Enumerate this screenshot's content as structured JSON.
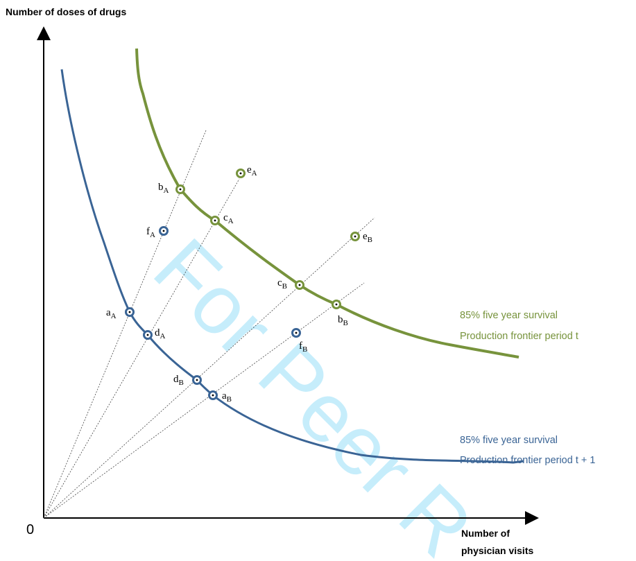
{
  "axes": {
    "y_title": "Number of doses of drugs",
    "x_title_line1": "Number of",
    "x_title_line2": "physician visits",
    "origin": "0"
  },
  "watermark": "For Peer R",
  "curves": {
    "period_t": {
      "caption_line1": "85% five year survival",
      "caption_line2": "Production frontier  period t",
      "color": "#77933c"
    },
    "period_t1": {
      "caption_line1": "85% five year survival",
      "caption_line2": "Production frontier period t + 1",
      "color": "#3a6495"
    }
  },
  "points": {
    "bA": {
      "main": "b",
      "sub": "A",
      "color": "#77933c"
    },
    "cA": {
      "main": "c",
      "sub": "A",
      "color": "#77933c"
    },
    "eA": {
      "main": "e",
      "sub": "A",
      "color": "#77933c"
    },
    "cB": {
      "main": "c",
      "sub": "B",
      "color": "#77933c"
    },
    "bB": {
      "main": "b",
      "sub": "B",
      "color": "#77933c"
    },
    "eB": {
      "main": "e",
      "sub": "B",
      "color": "#77933c"
    },
    "fA": {
      "main": "f",
      "sub": "A",
      "color": "#3a6495"
    },
    "aA": {
      "main": "a",
      "sub": "A",
      "color": "#3a6495"
    },
    "dA": {
      "main": "d",
      "sub": "A",
      "color": "#3a6495"
    },
    "fB": {
      "main": "f",
      "sub": "B",
      "color": "#3a6495"
    },
    "dB": {
      "main": "d",
      "sub": "B",
      "color": "#3a6495"
    },
    "aB": {
      "main": "a",
      "sub": "B",
      "color": "#3a6495"
    }
  }
}
